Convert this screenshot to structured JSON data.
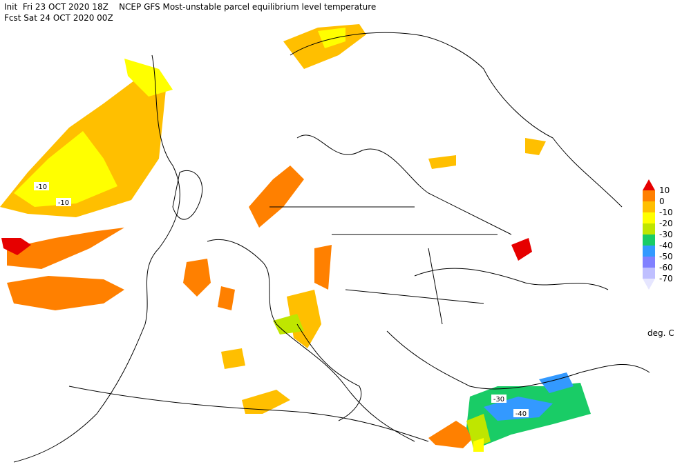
{
  "header": {
    "line1": "Init  Fri 23 OCT 2020 18Z    NCEP GFS Most-unstable parcel equilibrium level temperature",
    "line2": "Fcst Sat 24 OCT 2020 00Z"
  },
  "legend": {
    "labels": [
      "10",
      "0",
      "-10",
      "-20",
      "-30",
      "-40",
      "-50",
      "-60",
      "-70"
    ],
    "colors": [
      "#e60000",
      "#ff8000",
      "#ffbf00",
      "#ffff00",
      "#bfe600",
      "#19cc66",
      "#3399ff",
      "#8080ff",
      "#bfbfff",
      "#e6e6ff"
    ],
    "unit": "deg. C"
  },
  "contour_labels": [
    {
      "text": "-10"
    },
    {
      "text": "-10"
    },
    {
      "text": "-30"
    },
    {
      "text": "-40"
    }
  ]
}
